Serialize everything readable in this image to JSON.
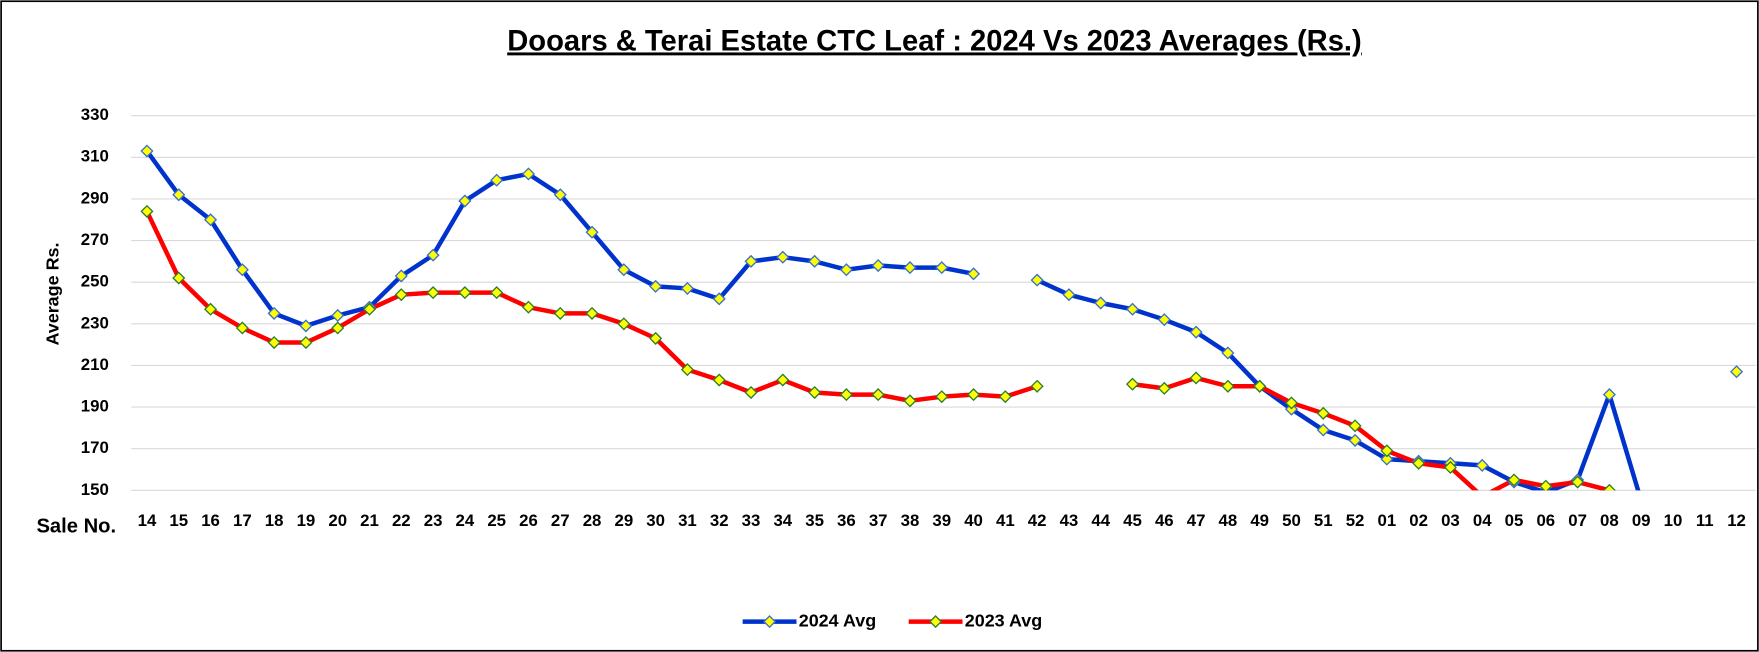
{
  "chart_data": {
    "type": "line",
    "title": "Dooars & Terai Estate CTC Leaf : 2024 Vs 2023 Averages (Rs.)",
    "y_label": "Average Rs.",
    "x_label": "Sale No.",
    "categories": [
      "14",
      "15",
      "16",
      "17",
      "18",
      "19",
      "20",
      "21",
      "22",
      "23",
      "24",
      "25",
      "26",
      "27",
      "28",
      "29",
      "30",
      "31",
      "32",
      "33",
      "34",
      "35",
      "36",
      "37",
      "38",
      "39",
      "40",
      "41",
      "42",
      "43",
      "44",
      "45",
      "46",
      "47",
      "48",
      "49",
      "50",
      "51",
      "52",
      "01",
      "02",
      "03",
      "04",
      "05",
      "06",
      "07",
      "08",
      "09",
      "10",
      "11",
      "12"
    ],
    "series": [
      {
        "name": "2024 Avg",
        "color": "#0033cc",
        "marker_color": "#ffff00",
        "values": [
          313,
          292,
          280,
          256,
          235,
          229,
          234,
          238,
          253,
          263,
          289,
          299,
          302,
          292,
          274,
          256,
          248,
          247,
          242,
          260,
          262,
          260,
          256,
          258,
          257,
          257,
          254,
          null,
          251,
          244,
          240,
          237,
          232,
          226,
          216,
          200,
          189,
          179,
          174,
          165,
          164,
          163,
          162,
          154,
          149,
          155,
          196,
          145,
          null,
          null,
          207
        ]
      },
      {
        "name": "2023 Avg",
        "color": "#ff0000",
        "marker_color": "#ffff00",
        "values": [
          284,
          252,
          237,
          228,
          221,
          221,
          228,
          237,
          244,
          245,
          245,
          245,
          238,
          235,
          235,
          230,
          223,
          208,
          203,
          197,
          203,
          197,
          196,
          196,
          193,
          195,
          196,
          195,
          200,
          null,
          null,
          201,
          199,
          204,
          200,
          200,
          192,
          187,
          181,
          169,
          163,
          161,
          147,
          155,
          152,
          154,
          150,
          null,
          null,
          null,
          null
        ]
      }
    ],
    "ylim": [
      150,
      330
    ],
    "yticks": [
      150,
      170,
      190,
      210,
      230,
      250,
      270,
      290,
      310,
      330
    ],
    "grid": true,
    "legend": "bottom"
  }
}
